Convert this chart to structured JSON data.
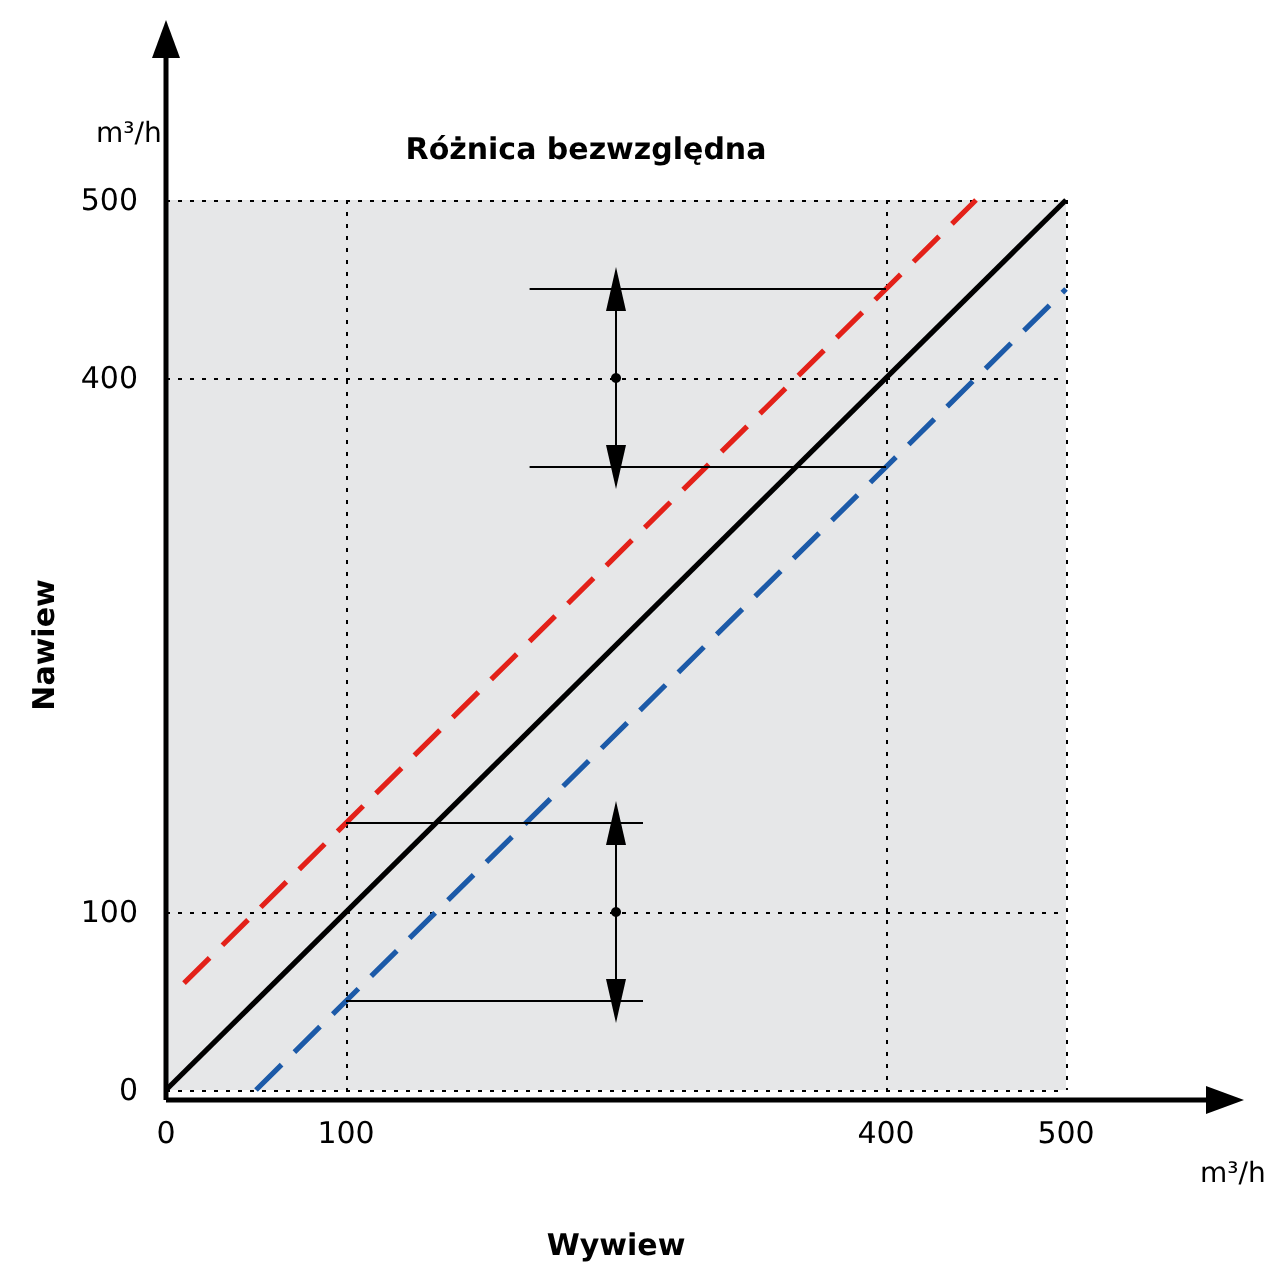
{
  "chart_data": {
    "type": "line",
    "title": "Różnica bezwzględna",
    "xlabel": "Wywiew",
    "ylabel": "Nawiew",
    "annotations": [
      "m³/h",
      "m³/h"
    ],
    "xlim": [
      0,
      500
    ],
    "ylim": [
      0,
      500
    ],
    "xticks": [
      0,
      100,
      400,
      500
    ],
    "yticks": [
      0,
      100,
      400,
      500
    ],
    "grid": true,
    "series": [
      {
        "color": "#000000",
        "line_style": "solid",
        "x": [
          0,
          500
        ],
        "values": [
          0,
          500
        ]
      },
      {
        "color": "#e32119",
        "line_style": "dashed",
        "x": [
          10,
          450
        ],
        "values": [
          60,
          500
        ]
      },
      {
        "color": "#1c5aa8",
        "line_style": "dashed",
        "x": [
          50,
          500
        ],
        "values": [
          0,
          450
        ]
      },
      {
        "color": "#000000",
        "line_style": "solid",
        "x": [
          202,
          400
        ],
        "values": [
          450,
          450
        ]
      },
      {
        "color": "#000000",
        "line_style": "solid",
        "x": [
          202,
          400
        ],
        "values": [
          350,
          350
        ]
      },
      {
        "color": "#000000",
        "line_style": "solid",
        "x": [
          100,
          265
        ],
        "values": [
          150,
          150
        ]
      },
      {
        "color": "#000000",
        "line_style": "solid",
        "x": [
          100,
          265
        ],
        "values": [
          50,
          50
        ]
      },
      {
        "color": "#000000",
        "line_style": "solid",
        "marker": "triangle",
        "x": [
          250,
          250,
          250
        ],
        "values": [
          450,
          400,
          350
        ]
      },
      {
        "color": "#000000",
        "line_style": "solid",
        "marker": "triangle",
        "x": [
          250,
          250,
          250
        ],
        "values": [
          150,
          100,
          50
        ]
      }
    ]
  }
}
